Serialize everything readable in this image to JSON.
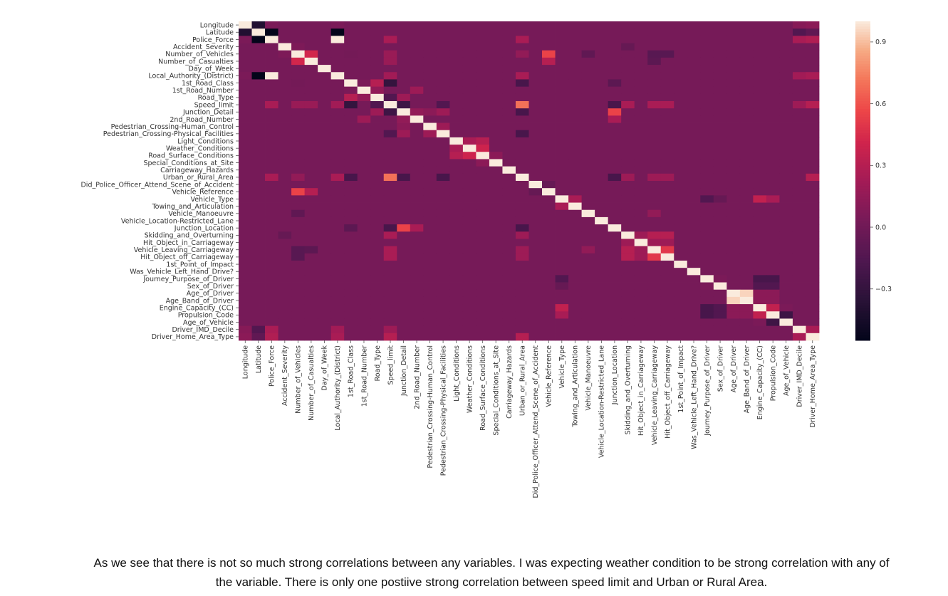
{
  "chart_data": {
    "type": "heatmap",
    "title": "",
    "xlabel": "",
    "ylabel": "",
    "labels": [
      "Longitude",
      "Latitude",
      "Police_Force",
      "Accident_Severity",
      "Number_of_Vehicles",
      "Number_of_Casualties",
      "Day_of_Week",
      "Local_Authority_(District)",
      "1st_Road_Class",
      "1st_Road_Number",
      "Road_Type",
      "Speed_limit",
      "Junction_Detail",
      "2nd_Road_Number",
      "Pedestrian_Crossing-Human_Control",
      "Pedestrian_Crossing-Physical_Facilities",
      "Light_Conditions",
      "Weather_Conditions",
      "Road_Surface_Conditions",
      "Special_Conditions_at_Site",
      "Carriageway_Hazards",
      "Urban_or_Rural_Area",
      "Did_Police_Officer_Attend_Scene_of_Accident",
      "Vehicle_Reference",
      "Vehicle_Type",
      "Towing_and_Articulation",
      "Vehicle_Manoeuvre",
      "Vehicle_Location-Restricted_Lane",
      "Junction_Location",
      "Skidding_and_Overturning",
      "Hit_Object_in_Carriageway",
      "Vehicle_Leaving_Carriageway",
      "Hit_Object_off_Carriageway",
      "1st_Point_of_Impact",
      "Was_Vehicle_Left_Hand_Drive?",
      "Journey_Purpose_of_Driver",
      "Sex_of_Driver",
      "Age_of_Driver",
      "Age_Band_of_Driver",
      "Engine_Capacity_(CC)",
      "Propulsion_Code",
      "Age_of_Vehicle",
      "Driver_IMD_Decile",
      "Driver_Home_Area_Type"
    ],
    "default_value": 0.03,
    "diagonal_value": 1.0,
    "pairs": [
      [
        0,
        1,
        -0.4
      ],
      [
        0,
        2,
        0.05
      ],
      [
        0,
        7,
        0.05
      ],
      [
        0,
        42,
        0.1
      ],
      [
        0,
        43,
        0.12
      ],
      [
        1,
        2,
        -0.55
      ],
      [
        1,
        7,
        -0.55
      ],
      [
        1,
        42,
        -0.15
      ],
      [
        1,
        43,
        -0.08
      ],
      [
        2,
        7,
        1.0
      ],
      [
        2,
        11,
        0.25
      ],
      [
        2,
        21,
        0.25
      ],
      [
        2,
        42,
        0.25
      ],
      [
        2,
        43,
        0.28
      ],
      [
        3,
        4,
        0.06
      ],
      [
        3,
        29,
        -0.05
      ],
      [
        4,
        5,
        0.42
      ],
      [
        4,
        23,
        0.55
      ],
      [
        4,
        8,
        0.02
      ],
      [
        4,
        11,
        0.18
      ],
      [
        4,
        21,
        0.15
      ],
      [
        4,
        26,
        -0.08
      ],
      [
        4,
        31,
        -0.12
      ],
      [
        4,
        32,
        -0.12
      ],
      [
        5,
        23,
        0.3
      ],
      [
        5,
        11,
        0.18
      ],
      [
        5,
        31,
        -0.1
      ],
      [
        7,
        11,
        0.22
      ],
      [
        7,
        21,
        0.25
      ],
      [
        7,
        42,
        0.22
      ],
      [
        7,
        43,
        0.25
      ],
      [
        8,
        9,
        0.05
      ],
      [
        8,
        10,
        0.3
      ],
      [
        8,
        11,
        -0.3
      ],
      [
        8,
        21,
        -0.2
      ],
      [
        8,
        28,
        -0.1
      ],
      [
        9,
        10,
        0.15
      ],
      [
        9,
        13,
        0.2
      ],
      [
        10,
        11,
        -0.15
      ],
      [
        10,
        12,
        0.2
      ],
      [
        11,
        12,
        -0.25
      ],
      [
        11,
        15,
        -0.15
      ],
      [
        11,
        21,
        0.7
      ],
      [
        11,
        28,
        -0.2
      ],
      [
        11,
        29,
        0.25
      ],
      [
        11,
        31,
        0.25
      ],
      [
        11,
        32,
        0.25
      ],
      [
        11,
        42,
        0.2
      ],
      [
        11,
        43,
        0.3
      ],
      [
        12,
        13,
        0.15
      ],
      [
        12,
        14,
        0.12
      ],
      [
        12,
        15,
        0.2
      ],
      [
        12,
        21,
        -0.2
      ],
      [
        12,
        28,
        0.55
      ],
      [
        13,
        28,
        0.25
      ],
      [
        14,
        15,
        0.2
      ],
      [
        15,
        21,
        -0.2
      ],
      [
        16,
        17,
        0.25
      ],
      [
        16,
        18,
        0.3
      ],
      [
        17,
        18,
        0.4
      ],
      [
        18,
        19,
        0.12
      ],
      [
        21,
        28,
        -0.2
      ],
      [
        21,
        29,
        0.2
      ],
      [
        21,
        31,
        0.2
      ],
      [
        21,
        32,
        0.2
      ],
      [
        21,
        43,
        0.3
      ],
      [
        22,
        23,
        -0.05
      ],
      [
        24,
        25,
        0.25
      ],
      [
        24,
        39,
        0.35
      ],
      [
        24,
        40,
        0.25
      ],
      [
        24,
        35,
        -0.15
      ],
      [
        24,
        36,
        -0.05
      ],
      [
        26,
        31,
        0.15
      ],
      [
        29,
        30,
        0.2
      ],
      [
        29,
        31,
        0.3
      ],
      [
        29,
        32,
        0.3
      ],
      [
        30,
        31,
        0.2
      ],
      [
        30,
        32,
        0.2
      ],
      [
        31,
        32,
        0.5
      ],
      [
        35,
        36,
        0.05
      ],
      [
        35,
        39,
        -0.2
      ],
      [
        35,
        40,
        -0.2
      ],
      [
        36,
        39,
        -0.15
      ],
      [
        36,
        40,
        -0.15
      ],
      [
        37,
        38,
        0.95
      ],
      [
        37,
        39,
        0.12
      ],
      [
        37,
        40,
        0.12
      ],
      [
        38,
        39,
        0.12
      ],
      [
        38,
        40,
        0.12
      ],
      [
        39,
        40,
        0.35
      ],
      [
        39,
        41,
        0.05
      ],
      [
        40,
        41,
        -0.25
      ],
      [
        42,
        43,
        0.25
      ]
    ],
    "colorbar": {
      "ticks": [
        "0.9",
        "0.6",
        "0.3",
        "0.0",
        "−0.3"
      ],
      "tick_values": [
        0.9,
        0.6,
        0.3,
        0.0,
        -0.3
      ],
      "vmin": -0.55,
      "vmax": 1.0
    }
  },
  "caption": {
    "line1": "As we see that there is not so much strong correlations between any variables. I was expecting weather condition to be strong correlation with any of",
    "line2": "the variable. There is only one postiive strong correlation between speed limit and Urban or Rural Area."
  }
}
